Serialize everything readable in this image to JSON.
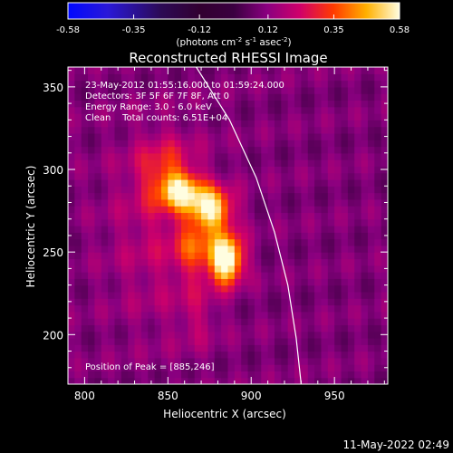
{
  "chart_data": {
    "type": "heatmap",
    "title": "Reconstructed RHESSI Image",
    "xlabel": "Heliocentric X (arcsec)",
    "ylabel": "Heliocentric Y (arcsec)",
    "xlim": [
      790,
      982
    ],
    "ylim": [
      170,
      362
    ],
    "x_ticks": [
      800,
      850,
      900,
      950
    ],
    "y_ticks": [
      200,
      250,
      300,
      350
    ],
    "colorbar": {
      "range": [
        -0.58,
        0.58
      ],
      "tick_values": [
        -0.58,
        -0.35,
        -0.12,
        0.12,
        0.35,
        0.58
      ],
      "tick_labels": [
        "-0.58",
        "-0.35",
        "-0.12",
        "0.12",
        "0.35",
        "0.58"
      ],
      "units_main": "(photons cm",
      "units_sup1": "-2",
      "units_mid": " s",
      "units_sup2": "-1",
      "units_end": " asec",
      "units_sup3": "-2",
      "units_close": ")"
    },
    "annotations": [
      "23-May-2012 01:55:16.000 to 01:59:24.000",
      "Detectors: 3F 5F 6F 7F 8F, Att 0",
      "Energy Range: 3.0 - 6.0 keV",
      "Clean    Total counts: 6.51E+04"
    ],
    "peak_label": "Position of Peak = [885,246]",
    "peak": {
      "x": 885,
      "y": 246,
      "value": 0.58
    },
    "sources": [
      {
        "x": 885,
        "y": 246,
        "sx": 7,
        "sy": 10,
        "amp": 0.58
      },
      {
        "x": 876,
        "y": 276,
        "sx": 9,
        "sy": 9,
        "amp": 0.44
      },
      {
        "x": 858,
        "y": 287,
        "sx": 9,
        "sy": 8,
        "amp": 0.34
      },
      {
        "x": 866,
        "y": 252,
        "sx": 8,
        "sy": 11,
        "amp": 0.2
      },
      {
        "x": 848,
        "y": 300,
        "sx": 12,
        "sy": 14,
        "amp": 0.16
      },
      {
        "x": 845,
        "y": 262,
        "sx": 22,
        "sy": 40,
        "amp": 0.1
      },
      {
        "x": 868,
        "y": 212,
        "sx": 8,
        "sy": 14,
        "amp": 0.08
      }
    ],
    "limb_curve": [
      {
        "x": 867,
        "y": 362
      },
      {
        "x": 887,
        "y": 330
      },
      {
        "x": 903,
        "y": 295
      },
      {
        "x": 914,
        "y": 262
      },
      {
        "x": 922,
        "y": 230
      },
      {
        "x": 927,
        "y": 198
      },
      {
        "x": 930,
        "y": 170
      }
    ],
    "footer_timestamp": "11-May-2022 02:49"
  }
}
